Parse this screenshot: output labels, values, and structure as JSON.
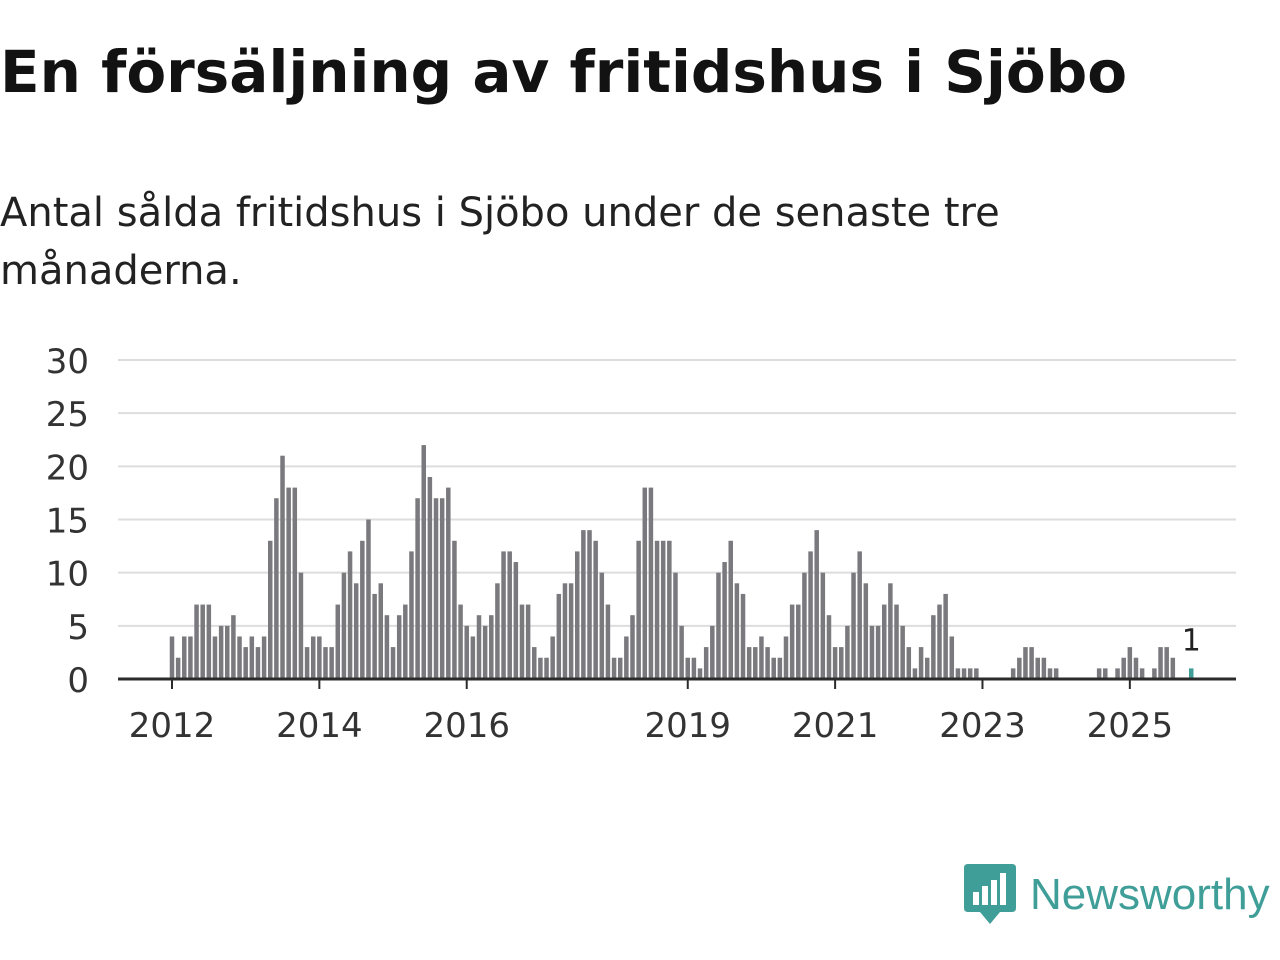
{
  "header": {
    "title": "En försäljning av fritidshus i Sjöbo",
    "subtitle": "Antal sålda fritidshus i Sjöbo under de senaste tre månaderna."
  },
  "chart_data": {
    "type": "bar",
    "y_ticks": [
      "30",
      "25",
      "20",
      "15",
      "10",
      "5",
      "0"
    ],
    "ylim": [
      0,
      30
    ],
    "grid": true,
    "x_ticks": [
      {
        "label": "2012",
        "index": 0
      },
      {
        "label": "2014",
        "index": 24
      },
      {
        "label": "2016",
        "index": 48
      },
      {
        "label": "2019",
        "index": 84
      },
      {
        "label": "2021",
        "index": 108
      },
      {
        "label": "2023",
        "index": 132
      },
      {
        "label": "2025",
        "index": 156
      }
    ],
    "values": [
      4,
      2,
      4,
      4,
      7,
      7,
      7,
      4,
      5,
      5,
      6,
      4,
      3,
      4,
      3,
      4,
      13,
      17,
      21,
      18,
      18,
      10,
      3,
      4,
      4,
      3,
      3,
      7,
      10,
      12,
      9,
      13,
      15,
      8,
      9,
      6,
      3,
      6,
      7,
      12,
      17,
      22,
      19,
      17,
      17,
      18,
      13,
      7,
      5,
      4,
      6,
      5,
      6,
      9,
      12,
      12,
      11,
      7,
      7,
      3,
      2,
      2,
      4,
      8,
      9,
      9,
      12,
      14,
      14,
      13,
      10,
      7,
      2,
      2,
      4,
      6,
      13,
      18,
      18,
      13,
      13,
      13,
      10,
      5,
      2,
      2,
      1,
      3,
      5,
      10,
      11,
      13,
      9,
      8,
      3,
      3,
      4,
      3,
      2,
      2,
      4,
      7,
      7,
      10,
      12,
      14,
      10,
      6,
      3,
      3,
      5,
      10,
      12,
      9,
      5,
      5,
      7,
      9,
      7,
      5,
      3,
      1,
      3,
      2,
      6,
      7,
      8,
      4,
      1,
      1,
      1,
      1,
      0,
      0,
      0,
      0,
      0,
      1,
      2,
      3,
      3,
      2,
      2,
      1,
      1,
      0,
      0,
      0,
      0,
      0,
      0,
      1,
      1,
      0,
      1,
      2,
      3,
      2,
      1,
      0,
      1,
      3,
      3,
      2,
      0,
      0,
      1
    ],
    "last_label": "1",
    "colors": {
      "bar": "#7a797e",
      "highlight": "#3f9e98",
      "grid": "#dddddd",
      "axis": "#2b2b2b"
    }
  },
  "brand": {
    "name": "Newsworthy",
    "icon": "newsworthy-logo-icon",
    "color": "#3f9e98"
  }
}
